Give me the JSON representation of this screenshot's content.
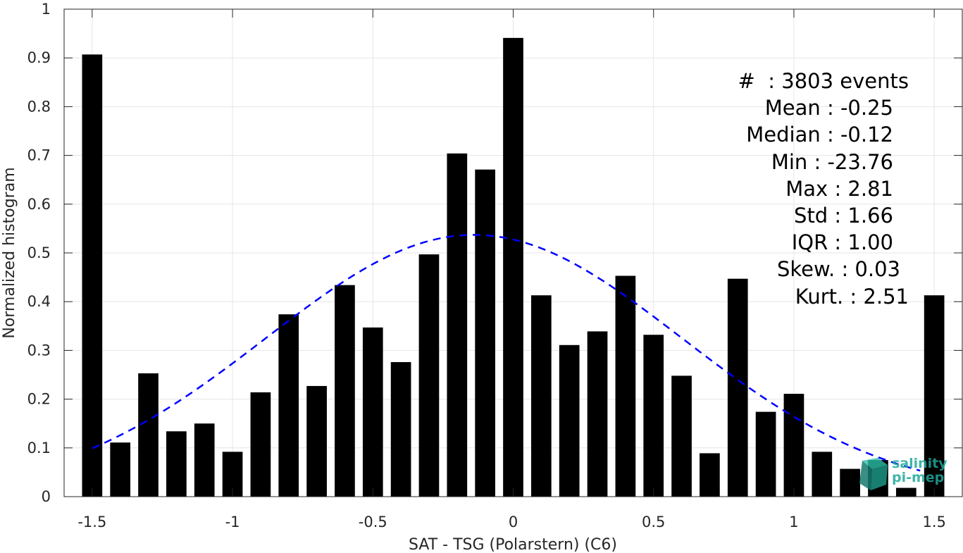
{
  "chart_data": {
    "type": "bar",
    "xlabel": "SAT - TSG (Polarstern) (C6)",
    "ylabel": "Normalized histogram",
    "xlim": [
      -1.6,
      1.6
    ],
    "ylim": [
      0,
      1
    ],
    "xticks": [
      "-1.5",
      "-1",
      "-0.5",
      "0",
      "0.5",
      "1",
      "1.5"
    ],
    "yticks": [
      "0",
      "0.1",
      "0.2",
      "0.3",
      "0.4",
      "0.5",
      "0.6",
      "0.7",
      "0.8",
      "0.9",
      "1"
    ],
    "grid": true,
    "bar_color": "#000000",
    "x": [
      -1.5,
      -1.4,
      -1.3,
      -1.2,
      -1.1,
      -1.0,
      -0.9,
      -0.8,
      -0.7,
      -0.6,
      -0.5,
      -0.4,
      -0.3,
      -0.2,
      -0.1,
      0.0,
      0.1,
      0.2,
      0.3,
      0.4,
      0.5,
      0.6,
      0.7,
      0.8,
      0.9,
      1.0,
      1.1,
      1.2,
      1.3,
      1.4,
      1.5
    ],
    "values": [
      0.907,
      0.111,
      0.253,
      0.134,
      0.15,
      0.092,
      0.214,
      0.374,
      0.227,
      0.434,
      0.347,
      0.276,
      0.497,
      0.704,
      0.671,
      0.941,
      0.413,
      0.311,
      0.339,
      0.453,
      0.332,
      0.248,
      0.089,
      0.447,
      0.174,
      0.211,
      0.092,
      0.057,
      0.075,
      0.018,
      0.413
    ],
    "fit_curve": {
      "type": "gaussian",
      "color": "#0000ff",
      "style": "dashed",
      "mean": -0.14,
      "std": 0.74,
      "peak": 0.537,
      "x_range": [
        -1.5,
        1.45
      ]
    },
    "annotations": [
      "#  : 3803 events",
      "Mean : -0.25",
      "Median : -0.12",
      "Min : -23.76",
      "Max : 2.81",
      "Std : 1.66",
      "IQR : 1.00",
      "Skew. : 0.03",
      "Kurt. : 2.51"
    ]
  },
  "logo": {
    "line1": "salinity",
    "line2": "pi-mep",
    "color": "#1fa99a",
    "icon": "salinity-cube-logo-icon"
  }
}
